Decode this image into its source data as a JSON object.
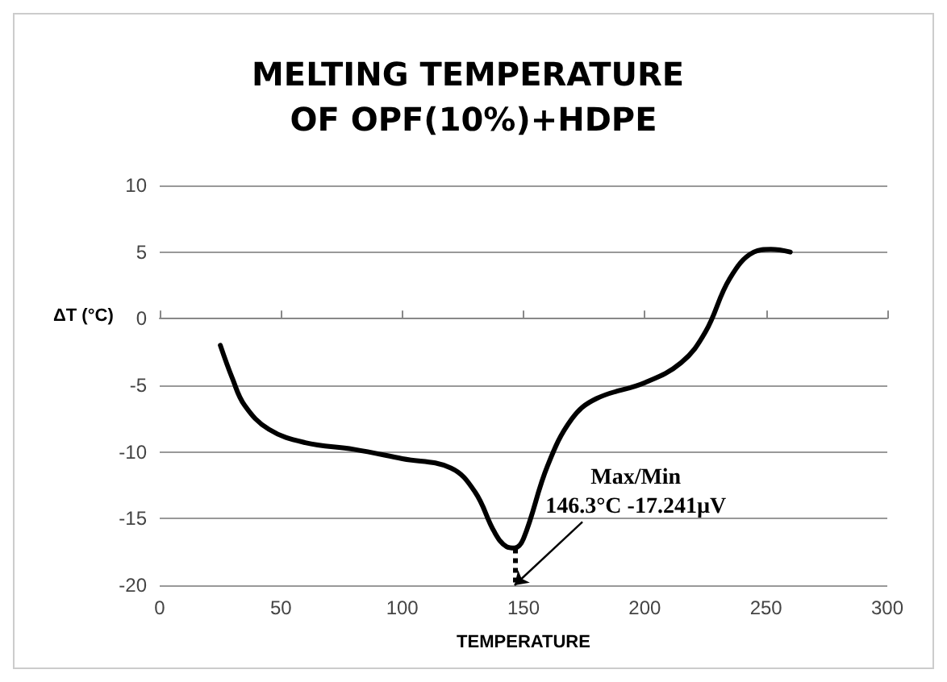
{
  "chart_data": {
    "type": "line",
    "title": "MELTING TEMPERATURE OF OPF(10%)+HDPE",
    "xlabel": "TEMPERATURE",
    "ylabel": "ΔT (°C)",
    "x": [
      25,
      30,
      35,
      45,
      60,
      80,
      100,
      120,
      130,
      138,
      143,
      146.3,
      150,
      160,
      170,
      180,
      200,
      215,
      225,
      235,
      245,
      252,
      260
    ],
    "series": [
      {
        "color": "#000000",
        "values": [
          -2,
          -4.5,
          -6.5,
          -8.3,
          -9.3,
          -9.8,
          -10.5,
          -11.2,
          -13,
          -16,
          -17.1,
          -17.2,
          -16.5,
          -11,
          -7.5,
          -6,
          -4.8,
          -3.3,
          -1,
          3,
          5,
          5.2,
          5
        ]
      }
    ],
    "xlim": [
      0,
      300
    ],
    "xticks": [
      0,
      50,
      100,
      150,
      200,
      250,
      300
    ],
    "ylim": [
      -20,
      10
    ],
    "yticks": [
      -20,
      -15,
      -10,
      -5,
      0,
      5,
      10
    ],
    "grid": "y",
    "marker": "none",
    "line_style": "solid",
    "annotations": [
      {
        "text": "Max/Min\n146.3°C -17.241µV",
        "x": 146.3,
        "y": -17.241
      }
    ]
  }
}
